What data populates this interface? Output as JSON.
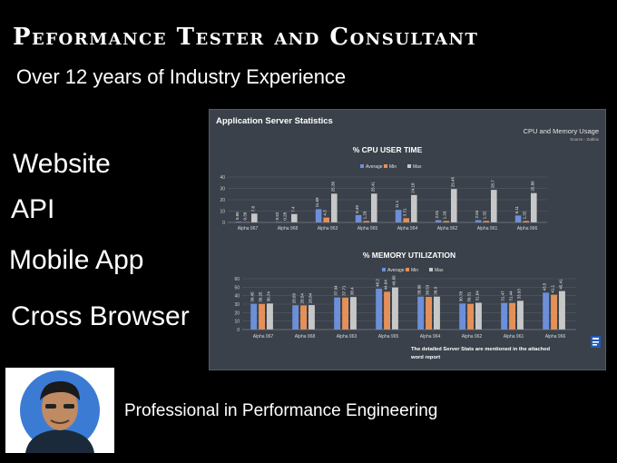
{
  "header": {
    "title": "Peformance Tester and Consultant",
    "subtitle": "Over 12 years of Industry Experience"
  },
  "services": [
    "Website",
    "API",
    "Mobile App",
    "Cross Browser"
  ],
  "tagline": "Professional in Performance Engineering",
  "colors": {
    "background": "#000000",
    "panel": "#3a414a",
    "average": "#6d8fd9",
    "min": "#e59058",
    "max": "#c7c7c7"
  },
  "panel": {
    "title": "Application Server Statistics",
    "top_right_title": "CPU and Memory Usage",
    "top_right_source": "Source - Zabbix",
    "footnote_line1": "The detailed Server Stats are mentioned in the attached",
    "footnote_line2": "word report",
    "icon": "word-document-icon"
  },
  "chart_data": [
    {
      "type": "bar",
      "title": "% CPU USER TIME",
      "categories": [
        "Alpha 967",
        "Alpha 968",
        "Alpha 963",
        "Alpha 965",
        "Alpha 964",
        "Alpha 962",
        "Alpha 961",
        "Alpha 966"
      ],
      "series": [
        {
          "name": "Average",
          "values": [
            0.66,
            0.52,
            11.69,
            6.49,
            11.1,
            2.01,
            2.04,
            6.11
          ]
        },
        {
          "name": "Min",
          "values": [
            0.39,
            0.28,
            4.3,
            1.29,
            3.71,
            1.29,
            1.32,
            1.32
          ]
        },
        {
          "name": "Max",
          "values": [
            7.8,
            7.4,
            25.36,
            25.41,
            24.18,
            29.45,
            28.7,
            25.86
          ]
        }
      ],
      "value_labels": [
        [
          "0.66",
          "0.52",
          "11.69",
          "6.49",
          "11.1",
          "2.01",
          "2.04",
          "6.11"
        ],
        [
          "0.39",
          "0.28",
          "4.3",
          "1.29",
          "3.71",
          "1.29",
          "1.32",
          "1.32"
        ],
        [
          "7.8",
          "7.4",
          "25.36",
          "25.41",
          "24.18",
          "29.45",
          "28.7",
          "25.86"
        ]
      ],
      "ylim": [
        0,
        40
      ],
      "yticks": [
        "0",
        "10",
        "20",
        "30",
        "40"
      ],
      "legend": "top-center",
      "grid": true
    },
    {
      "type": "bar",
      "title": "% MEMORY UTILIZATION",
      "categories": [
        "Alpha 967",
        "Alpha 968",
        "Alpha 963",
        "Alpha 965",
        "Alpha 964",
        "Alpha 962",
        "Alpha 961",
        "Alpha 966"
      ],
      "series": [
        {
          "name": "Average",
          "values": [
            30.45,
            28.69,
            37.94,
            48.2,
            38.86,
            30.78,
            31.47,
            43.5
          ]
        },
        {
          "name": "Min",
          "values": [
            30.25,
            28.54,
            37.71,
            44.64,
            38.53,
            30.31,
            31.44,
            41.1
          ]
        },
        {
          "name": "Max",
          "values": [
            30.74,
            28.84,
            38.4,
            49.66,
            38.9,
            31.64,
            33.93,
            45.41
          ]
        }
      ],
      "value_labels": [
        [
          "30.45",
          "28.69",
          "37.94",
          "48.2",
          "38.86",
          "30.78",
          "31.47",
          "43.5"
        ],
        [
          "30.25",
          "28.54",
          "37.71",
          "44.64",
          "38.53",
          "30.31",
          "31.44",
          "41.1"
        ],
        [
          "30.74",
          "28.84",
          "38.4",
          "49.66",
          "38.9",
          "31.64",
          "33.93",
          "45.41"
        ]
      ],
      "ylim": [
        0,
        60
      ],
      "yticks": [
        "0",
        "10",
        "20",
        "30",
        "40",
        "50",
        "60"
      ],
      "legend": "top-center",
      "grid": true
    }
  ]
}
